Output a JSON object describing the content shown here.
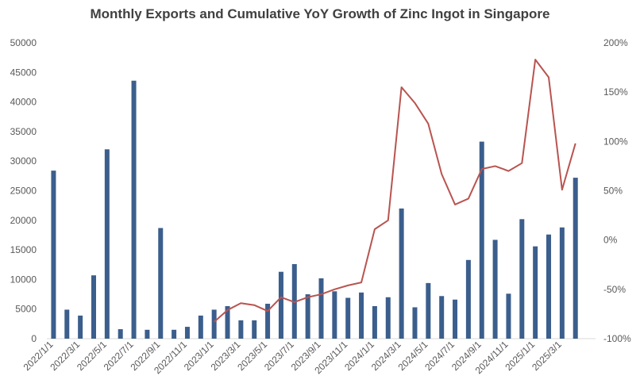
{
  "chart_data": {
    "type": "bar",
    "title": "Monthly Exports and Cumulative YoY Growth of Zinc Ingot in Singapore",
    "xlabel": "",
    "ylabel": "",
    "y2label": "",
    "ylim": [
      0,
      50000
    ],
    "y2lim": [
      -100,
      200
    ],
    "yticks": [
      "0",
      "5000",
      "10000",
      "15000",
      "20000",
      "25000",
      "30000",
      "35000",
      "40000",
      "45000",
      "50000"
    ],
    "y2ticks": [
      "-100%",
      "-50%",
      "0%",
      "50%",
      "100%",
      "150%",
      "200%"
    ],
    "categories": [
      "2022/1/1",
      "2022/2/1",
      "2022/3/1",
      "2022/4/1",
      "2022/5/1",
      "2022/6/1",
      "2022/7/1",
      "2022/8/1",
      "2022/9/1",
      "2022/10/1",
      "2022/11/1",
      "2022/12/1",
      "2023/1/1",
      "2023/2/1",
      "2023/3/1",
      "2023/4/1",
      "2023/5/1",
      "2023/6/1",
      "2023/7/1",
      "2023/8/1",
      "2023/9/1",
      "2023/10/1",
      "2023/11/1",
      "2023/12/1",
      "2024/1/1",
      "2024/2/1",
      "2024/3/1",
      "2024/4/1",
      "2024/5/1",
      "2024/6/1",
      "2024/7/1",
      "2024/8/1",
      "2024/9/1",
      "2024/10/1",
      "2024/11/1",
      "2024/12/1",
      "2025/1/1",
      "2025/2/1",
      "2025/3/1",
      "2025/4/1",
      "2025/5/1"
    ],
    "x_tick_labels": [
      "2022/1/1",
      "2022/3/1",
      "2022/5/1",
      "2022/7/1",
      "2022/9/1",
      "2022/11/1",
      "2023/1/1",
      "2023/3/1",
      "2023/5/1",
      "2023/7/1",
      "2023/9/1",
      "2023/11/1",
      "2024/1/1",
      "2024/3/1",
      "2024/5/1",
      "2024/7/1",
      "2024/9/1",
      "2024/11/1",
      "2025/1/1",
      "2025/3/1"
    ],
    "series": [
      {
        "type": "bar",
        "axis": "left",
        "color": "#3b5e8c",
        "values": [
          28400,
          4900,
          3900,
          10700,
          32000,
          1600,
          43600,
          1500,
          18700,
          1500,
          2000,
          3900,
          4900,
          5500,
          3100,
          3100,
          5900,
          11300,
          12600,
          7500,
          10200,
          8000,
          6900,
          7800,
          5500,
          7000,
          22000,
          5300,
          9400,
          7200,
          6600,
          13300,
          33300,
          16700,
          7600,
          20200,
          15600,
          17600,
          18800,
          27200,
          null
        ]
      },
      {
        "type": "line",
        "axis": "right",
        "color": "#b85450",
        "values": [
          null,
          null,
          null,
          null,
          null,
          null,
          null,
          null,
          null,
          null,
          null,
          null,
          -83,
          -71,
          -64,
          -66,
          -72,
          -58,
          -63,
          -58,
          -55,
          -50,
          -46,
          -43,
          11,
          20,
          155,
          139,
          118,
          67,
          36,
          42,
          72,
          75,
          70,
          78,
          183,
          165,
          51,
          98,
          null
        ]
      }
    ],
    "legend": "none",
    "grid": false
  }
}
